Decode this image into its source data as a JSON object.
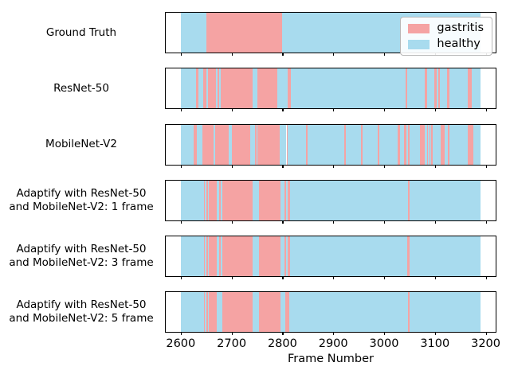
{
  "chart_data": {
    "type": "bar",
    "variant": "categorical-timeline-subplots",
    "title": "",
    "xlabel": "Frame Number",
    "x_ticks": [
      2600,
      2700,
      2800,
      2900,
      3000,
      3100,
      3200
    ],
    "xlim": [
      2570.5,
      3219.5
    ],
    "frame_range": [
      2600,
      3190
    ],
    "grid": false,
    "legend_position": "upper-right-of-first-subplot",
    "classes": {
      "gastritis": "#f5a3a3",
      "healthy": "#a8dbee"
    },
    "rows": [
      {
        "label": "Ground Truth",
        "label_lines": [
          "Ground Truth"
        ],
        "segments": [
          [
            2600,
            2650,
            "healthy"
          ],
          [
            2650,
            2800,
            "gastritis"
          ],
          [
            2800,
            3190,
            "healthy"
          ]
        ]
      },
      {
        "label": "ResNet-50",
        "label_lines": [
          "ResNet-50"
        ],
        "segments": [
          [
            2600,
            2630,
            "healthy"
          ],
          [
            2630,
            2634,
            "gastritis"
          ],
          [
            2634,
            2644,
            "healthy"
          ],
          [
            2644,
            2651,
            "gastritis"
          ],
          [
            2651,
            2654,
            "healthy"
          ],
          [
            2654,
            2670,
            "gastritis"
          ],
          [
            2670,
            2673,
            "healthy"
          ],
          [
            2673,
            2676,
            "gastritis"
          ],
          [
            2676,
            2679,
            "healthy"
          ],
          [
            2679,
            2741,
            "gastritis"
          ],
          [
            2741,
            2751,
            "healthy"
          ],
          [
            2751,
            2790,
            "gastritis"
          ],
          [
            2790,
            2811,
            "healthy"
          ],
          [
            2811,
            2816,
            "gastritis"
          ],
          [
            2816,
            3042,
            "healthy"
          ],
          [
            3042,
            3046,
            "gastritis"
          ],
          [
            3046,
            3080,
            "healthy"
          ],
          [
            3080,
            3084,
            "gastritis"
          ],
          [
            3084,
            3099,
            "healthy"
          ],
          [
            3099,
            3103,
            "gastritis"
          ],
          [
            3103,
            3106,
            "healthy"
          ],
          [
            3106,
            3110,
            "gastritis"
          ],
          [
            3110,
            3124,
            "healthy"
          ],
          [
            3124,
            3128,
            "gastritis"
          ],
          [
            3128,
            3164,
            "healthy"
          ],
          [
            3164,
            3172,
            "gastritis"
          ],
          [
            3172,
            3190,
            "healthy"
          ]
        ]
      },
      {
        "label": "MobileNet-V2",
        "label_lines": [
          "MobileNet-V2"
        ],
        "segments": [
          [
            2600,
            2625,
            "healthy"
          ],
          [
            2625,
            2631,
            "gastritis"
          ],
          [
            2631,
            2643,
            "healthy"
          ],
          [
            2643,
            2664,
            "gastritis"
          ],
          [
            2664,
            2667,
            "healthy"
          ],
          [
            2667,
            2695,
            "gastritis"
          ],
          [
            2695,
            2700,
            "healthy"
          ],
          [
            2700,
            2736,
            "gastritis"
          ],
          [
            2736,
            2746,
            "healthy"
          ],
          [
            2746,
            2749,
            "gastritis"
          ],
          [
            2749,
            2751,
            "healthy"
          ],
          [
            2751,
            2795,
            "gastritis"
          ],
          [
            2795,
            2808,
            "healthy"
          ],
          [
            2808,
            2811,
            "gastritis"
          ],
          [
            2811,
            2847,
            "healthy"
          ],
          [
            2847,
            2850,
            "gastritis"
          ],
          [
            2850,
            2922,
            "healthy"
          ],
          [
            2922,
            2925,
            "gastritis"
          ],
          [
            2925,
            2955,
            "healthy"
          ],
          [
            2955,
            2958,
            "gastritis"
          ],
          [
            2958,
            2987,
            "healthy"
          ],
          [
            2987,
            2990,
            "gastritis"
          ],
          [
            2990,
            3027,
            "healthy"
          ],
          [
            3027,
            3031,
            "gastritis"
          ],
          [
            3031,
            3040,
            "healthy"
          ],
          [
            3040,
            3044,
            "gastritis"
          ],
          [
            3044,
            3047,
            "healthy"
          ],
          [
            3047,
            3050,
            "gastritis"
          ],
          [
            3050,
            3070,
            "healthy"
          ],
          [
            3070,
            3080,
            "gastritis"
          ],
          [
            3080,
            3084,
            "healthy"
          ],
          [
            3084,
            3087,
            "gastritis"
          ],
          [
            3087,
            3089,
            "healthy"
          ],
          [
            3089,
            3091,
            "gastritis"
          ],
          [
            3091,
            3093,
            "healthy"
          ],
          [
            3093,
            3096,
            "gastritis"
          ],
          [
            3096,
            3112,
            "healthy"
          ],
          [
            3112,
            3119,
            "gastritis"
          ],
          [
            3119,
            3125,
            "healthy"
          ],
          [
            3125,
            3129,
            "gastritis"
          ],
          [
            3129,
            3164,
            "healthy"
          ],
          [
            3164,
            3176,
            "gastritis"
          ],
          [
            3176,
            3190,
            "healthy"
          ]
        ]
      },
      {
        "label": "Adaptify with ResNet-50 and MobileNet-V2: 1 frame",
        "label_lines": [
          "Adaptify with ResNet-50",
          "and MobileNet-V2: 1 frame"
        ],
        "segments": [
          [
            2600,
            2645,
            "healthy"
          ],
          [
            2645,
            2648,
            "gastritis"
          ],
          [
            2648,
            2650,
            "healthy"
          ],
          [
            2650,
            2653,
            "gastritis"
          ],
          [
            2653,
            2655,
            "healthy"
          ],
          [
            2655,
            2671,
            "gastritis"
          ],
          [
            2671,
            2675,
            "healthy"
          ],
          [
            2675,
            2678,
            "gastritis"
          ],
          [
            2678,
            2682,
            "healthy"
          ],
          [
            2682,
            2741,
            "gastritis"
          ],
          [
            2741,
            2754,
            "healthy"
          ],
          [
            2754,
            2796,
            "gastritis"
          ],
          [
            2796,
            2804,
            "healthy"
          ],
          [
            2804,
            2807,
            "gastritis"
          ],
          [
            2807,
            2810,
            "healthy"
          ],
          [
            2810,
            2815,
            "gastritis"
          ],
          [
            2815,
            3047,
            "healthy"
          ],
          [
            3047,
            3050,
            "gastritis"
          ],
          [
            3050,
            3190,
            "healthy"
          ]
        ]
      },
      {
        "label": "Adaptify with ResNet-50 and MobileNet-V2: 3 frame",
        "label_lines": [
          "Adaptify with ResNet-50",
          "and MobileNet-V2: 3 frame"
        ],
        "segments": [
          [
            2600,
            2645,
            "healthy"
          ],
          [
            2645,
            2648,
            "gastritis"
          ],
          [
            2648,
            2650,
            "healthy"
          ],
          [
            2650,
            2653,
            "gastritis"
          ],
          [
            2653,
            2655,
            "healthy"
          ],
          [
            2655,
            2671,
            "gastritis"
          ],
          [
            2671,
            2675,
            "healthy"
          ],
          [
            2675,
            2678,
            "gastritis"
          ],
          [
            2678,
            2682,
            "healthy"
          ],
          [
            2682,
            2741,
            "gastritis"
          ],
          [
            2741,
            2754,
            "healthy"
          ],
          [
            2754,
            2796,
            "gastritis"
          ],
          [
            2796,
            2804,
            "healthy"
          ],
          [
            2804,
            2807,
            "gastritis"
          ],
          [
            2807,
            2810,
            "healthy"
          ],
          [
            2810,
            2815,
            "gastritis"
          ],
          [
            2815,
            3045,
            "healthy"
          ],
          [
            3045,
            3050,
            "gastritis"
          ],
          [
            3050,
            3190,
            "healthy"
          ]
        ]
      },
      {
        "label": "Adaptify with ResNet-50 and MobileNet-V2: 5 frame",
        "label_lines": [
          "Adaptify with ResNet-50",
          "and MobileNet-V2: 5 frame"
        ],
        "segments": [
          [
            2600,
            2645,
            "healthy"
          ],
          [
            2645,
            2648,
            "gastritis"
          ],
          [
            2648,
            2650,
            "healthy"
          ],
          [
            2650,
            2653,
            "gastritis"
          ],
          [
            2653,
            2655,
            "healthy"
          ],
          [
            2655,
            2671,
            "gastritis"
          ],
          [
            2671,
            2682,
            "healthy"
          ],
          [
            2682,
            2741,
            "gastritis"
          ],
          [
            2741,
            2754,
            "healthy"
          ],
          [
            2754,
            2796,
            "gastritis"
          ],
          [
            2796,
            2806,
            "healthy"
          ],
          [
            2806,
            2814,
            "gastritis"
          ],
          [
            2814,
            3047,
            "healthy"
          ],
          [
            3047,
            3050,
            "gastritis"
          ],
          [
            3050,
            3190,
            "healthy"
          ]
        ]
      }
    ]
  },
  "legend": {
    "items": [
      {
        "label": "gastritis",
        "color": "#f5a3a3"
      },
      {
        "label": "healthy",
        "color": "#a8dbee"
      }
    ]
  }
}
